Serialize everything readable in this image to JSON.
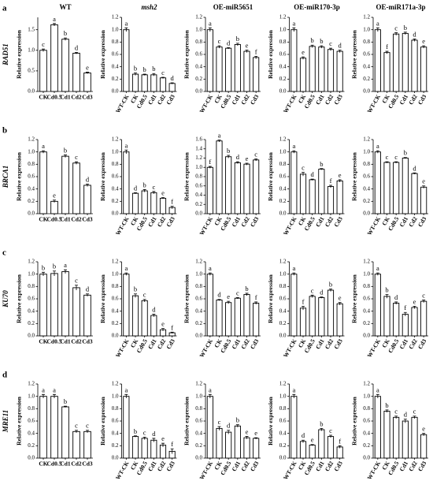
{
  "chart_data": [
    {
      "type": "bar",
      "panel": "a",
      "gene": "RAD51",
      "title": "WT",
      "ylabel": "Relative expression",
      "categories": [
        "CK",
        "Cd0.5",
        "Cd1",
        "Cd2",
        "Cd3"
      ],
      "values": [
        1.0,
        1.62,
        1.27,
        0.93,
        0.45
      ],
      "errors": [
        0.03,
        0.03,
        0.03,
        0.02,
        0.02
      ],
      "letters": [
        "c",
        "a",
        "b",
        "d",
        "e"
      ],
      "ylim": [
        0,
        1.8
      ],
      "yticks": [
        {
          "value": 0,
          "label": "0.0"
        },
        0.5,
        {
          "value": 1,
          "label": "1.0"
        },
        1.5
      ]
    },
    {
      "type": "bar",
      "title": "msh2",
      "ylabel": "Relative expression",
      "categories": [
        "WT-CK",
        "CK",
        "Cd0.5",
        "Cd1",
        "Cd2",
        "Cd3"
      ],
      "values": [
        1.0,
        0.28,
        0.27,
        0.27,
        0.22,
        0.13
      ],
      "errors": [
        0.03,
        0.02,
        0.01,
        0.02,
        0.01,
        0.01
      ],
      "letters": [
        "a",
        "b",
        "b",
        "b",
        "c",
        "d"
      ],
      "ylim": [
        0,
        1.2
      ],
      "yticks": [
        {
          "value": 0,
          "label": "0.0"
        },
        0.2,
        0.4,
        0.6,
        0.8,
        {
          "value": 1,
          "label": "1.0"
        },
        1.2
      ]
    },
    {
      "type": "bar",
      "title": "OE-miR5651",
      "ylabel": "Relative expression",
      "categories": [
        "WT-CK",
        "CK",
        "Cd0.5",
        "Cd1",
        "Cd2",
        "Cd3"
      ],
      "values": [
        1.0,
        0.72,
        0.7,
        0.76,
        0.65,
        0.55
      ],
      "errors": [
        0.03,
        0.02,
        0.01,
        0.02,
        0.02,
        0.02
      ],
      "letters": [
        "a",
        "c",
        "d",
        "b",
        "e",
        "f"
      ],
      "ylim": [
        0,
        1.2
      ],
      "yticks": [
        {
          "value": 0,
          "label": "0.0"
        },
        0.2,
        0.4,
        0.6,
        0.8,
        {
          "value": 1,
          "label": "1.0"
        },
        1.2
      ]
    },
    {
      "type": "bar",
      "title": "OE-miR170-3p",
      "ylabel": "Relative expression",
      "categories": [
        "WT-CK",
        "CK",
        "Cd0.5",
        "Cd1",
        "Cd2",
        "Cd3"
      ],
      "values": [
        1.0,
        0.54,
        0.73,
        0.72,
        0.68,
        0.65
      ],
      "errors": [
        0.03,
        0.02,
        0.02,
        0.02,
        0.02,
        0.02
      ],
      "letters": [
        "a",
        "e",
        "b",
        "b",
        "c",
        "d"
      ],
      "ylim": [
        0,
        1.2
      ],
      "yticks": [
        {
          "value": 0,
          "label": "0.0"
        },
        0.2,
        0.4,
        0.6,
        0.8,
        {
          "value": 1,
          "label": "1.0"
        },
        1.2
      ]
    },
    {
      "type": "bar",
      "title": "OE-miR171a-3p",
      "ylabel": "Relative expression",
      "categories": [
        "WT-CK",
        "CK",
        "Cd0.5",
        "Cd1",
        "Cd2",
        "Cd3"
      ],
      "values": [
        1.0,
        0.63,
        0.93,
        0.94,
        0.83,
        0.72
      ],
      "errors": [
        0.03,
        0.02,
        0.02,
        0.02,
        0.02,
        0.02
      ],
      "letters": [
        "a",
        "f",
        "c",
        "b",
        "d",
        "e"
      ],
      "ylim": [
        0,
        1.2
      ],
      "yticks": [
        {
          "value": 0,
          "label": "0.0"
        },
        0.2,
        0.4,
        0.6,
        0.8,
        {
          "value": 1,
          "label": "1.0"
        },
        1.2
      ]
    },
    {
      "type": "bar",
      "panel": "b",
      "gene": "BRCA1",
      "ylabel": "Relative expression",
      "categories": [
        "CK",
        "Cd0.5",
        "Cd1",
        "Cd2",
        "Cd3"
      ],
      "values": [
        1.0,
        0.2,
        0.93,
        0.82,
        0.46
      ],
      "errors": [
        0.02,
        0.02,
        0.02,
        0.02,
        0.02
      ],
      "letters": [
        "a",
        "e",
        "b",
        "c",
        "d"
      ],
      "ylim": [
        0,
        1.2
      ],
      "yticks": [
        {
          "value": 0,
          "label": "0.0"
        },
        0.2,
        0.4,
        0.6,
        0.8,
        {
          "value": 1,
          "label": "1.0"
        },
        1.2
      ]
    },
    {
      "type": "bar",
      "ylabel": "Relative expression",
      "categories": [
        "WT-CK",
        "CK",
        "Cd0.5",
        "Cd1",
        "Cd2",
        "Cd3"
      ],
      "values": [
        1.0,
        0.33,
        0.37,
        0.34,
        0.25,
        0.1
      ],
      "errors": [
        0.03,
        0.01,
        0.02,
        0.02,
        0.01,
        0.02
      ],
      "letters": [
        "a",
        "d",
        "b",
        "c",
        "e",
        "f"
      ],
      "ylim": [
        0,
        1.2
      ],
      "yticks": [
        {
          "value": 0,
          "label": "0.0"
        },
        0.2,
        0.4,
        0.6,
        0.8,
        {
          "value": 1,
          "label": "1.0"
        },
        1.2
      ]
    },
    {
      "type": "bar",
      "ylabel": "Relative expression",
      "categories": [
        "WT-CK",
        "CK",
        "Cd0.5",
        "Cd1",
        "Cd2",
        "Cd3"
      ],
      "values": [
        1.0,
        1.57,
        1.23,
        1.1,
        1.07,
        1.16
      ],
      "errors": [
        0.02,
        0.02,
        0.03,
        0.02,
        0.02,
        0.02
      ],
      "letters": [
        "f",
        "a",
        "b",
        "d",
        "e",
        "c"
      ],
      "ylim": [
        0,
        1.6
      ],
      "yticks": [
        {
          "value": 0,
          "label": "0.0"
        },
        0.2,
        0.4,
        0.6,
        0.8,
        {
          "value": 1,
          "label": "1.0"
        },
        1.2,
        1.4,
        1.6
      ]
    },
    {
      "type": "bar",
      "ylabel": "Relative expression",
      "categories": [
        "WT-CK",
        "CK",
        "Cd0.5",
        "Cd1",
        "Cd2",
        "Cd3"
      ],
      "values": [
        1.0,
        0.64,
        0.55,
        0.72,
        0.44,
        0.53
      ],
      "errors": [
        0.02,
        0.03,
        0.01,
        0.01,
        0.02,
        0.02
      ],
      "letters": [
        "a",
        "c",
        "d",
        "b",
        "f",
        "e"
      ],
      "ylim": [
        0,
        1.2
      ],
      "yticks": [
        {
          "value": 0,
          "label": "0.0"
        },
        0.2,
        0.4,
        0.6,
        0.8,
        {
          "value": 1,
          "label": "1.0"
        },
        1.2
      ]
    },
    {
      "type": "bar",
      "ylabel": "Relative expression",
      "categories": [
        "WT-CK",
        "CK",
        "Cd0.5",
        "Cd1",
        "Cd2",
        "Cd3"
      ],
      "values": [
        1.0,
        0.83,
        0.83,
        0.9,
        0.65,
        0.43
      ],
      "errors": [
        0.02,
        0.01,
        0.01,
        0.01,
        0.01,
        0.02
      ],
      "letters": [
        "a",
        "c",
        "c",
        "b",
        "d",
        "e"
      ],
      "ylim": [
        0,
        1.2
      ],
      "yticks": [
        {
          "value": 0,
          "label": "0.0"
        },
        0.2,
        0.4,
        0.6,
        0.8,
        {
          "value": 1,
          "label": "1.0"
        },
        1.2
      ]
    },
    {
      "type": "bar",
      "panel": "c",
      "gene": "KU70",
      "ylabel": "Relative expression",
      "categories": [
        "CK",
        "Cd0.5",
        "Cd1",
        "Cd2",
        "Cd3"
      ],
      "values": [
        1.0,
        1.01,
        1.04,
        0.78,
        0.66
      ],
      "errors": [
        0.03,
        0.04,
        0.03,
        0.04,
        0.02
      ],
      "letters": [
        "b",
        "b",
        "a",
        "c",
        "d"
      ],
      "ylim": [
        0,
        1.2
      ],
      "yticks": [
        {
          "value": 0,
          "label": "0.0"
        },
        0.2,
        0.4,
        0.6,
        0.8,
        {
          "value": 1,
          "label": "1.0"
        },
        1.2
      ]
    },
    {
      "type": "bar",
      "ylabel": "Relative expression",
      "categories": [
        "WT-CK",
        "CK",
        "Cd0.5",
        "Cd1",
        "Cd2",
        "Cd3"
      ],
      "values": [
        1.0,
        0.65,
        0.57,
        0.33,
        0.1,
        0.05
      ],
      "errors": [
        0.02,
        0.03,
        0.02,
        0.02,
        0.02,
        0.01
      ],
      "letters": [
        "a",
        "b",
        "c",
        "d",
        "e",
        "f"
      ],
      "ylim": [
        0,
        1.2
      ],
      "yticks": [
        {
          "value": 0,
          "label": "0.0"
        },
        0.2,
        0.4,
        0.6,
        0.8,
        {
          "value": 1,
          "label": "1.0"
        },
        1.2
      ]
    },
    {
      "type": "bar",
      "ylabel": "Relative expression",
      "categories": [
        "WT-CK",
        "CK",
        "Cd0.5",
        "Cd1",
        "Cd2",
        "Cd3"
      ],
      "values": [
        1.0,
        0.58,
        0.54,
        0.61,
        0.67,
        0.53
      ],
      "errors": [
        0.02,
        0.01,
        0.02,
        0.01,
        0.02,
        0.02
      ],
      "letters": [
        "a",
        "d",
        "e",
        "c",
        "b",
        "f"
      ],
      "ylim": [
        0,
        1.2
      ],
      "yticks": [
        {
          "value": 0,
          "label": "0.0"
        },
        0.2,
        0.4,
        0.6,
        0.8,
        {
          "value": 1,
          "label": "1.0"
        },
        1.2
      ]
    },
    {
      "type": "bar",
      "ylabel": "Relative expression",
      "categories": [
        "WT-CK",
        "CK",
        "Cd0.5",
        "Cd1",
        "Cd2",
        "Cd3"
      ],
      "values": [
        1.0,
        0.45,
        0.64,
        0.62,
        0.74,
        0.52
      ],
      "errors": [
        0.02,
        0.03,
        0.02,
        0.01,
        0.02,
        0.02
      ],
      "letters": [
        "a",
        "f",
        "c",
        "d",
        "b",
        "e"
      ],
      "ylim": [
        0,
        1.2
      ],
      "yticks": [
        {
          "value": 0,
          "label": "0.0"
        },
        0.2,
        0.4,
        0.6,
        0.8,
        {
          "value": 1,
          "label": "1.0"
        },
        1.2
      ]
    },
    {
      "type": "bar",
      "ylabel": "Relative expression",
      "categories": [
        "WT-CK",
        "CK",
        "Cd0.5",
        "Cd1",
        "Cd2",
        "Cd3"
      ],
      "values": [
        1.0,
        0.64,
        0.53,
        0.35,
        0.46,
        0.56
      ],
      "errors": [
        0.02,
        0.03,
        0.02,
        0.03,
        0.02,
        0.02
      ],
      "letters": [
        "a",
        "b",
        "d",
        "f",
        "e",
        "c"
      ],
      "ylim": [
        0,
        1.2
      ],
      "yticks": [
        {
          "value": 0,
          "label": "0.0"
        },
        0.2,
        0.4,
        0.6,
        0.8,
        {
          "value": 1,
          "label": "1.0"
        },
        1.2
      ]
    },
    {
      "type": "bar",
      "panel": "d",
      "gene": "MRE11",
      "ylabel": "Relative expression",
      "categories": [
        "CK",
        "Cd0.5",
        "Cd1",
        "Cd2",
        "Cd3"
      ],
      "values": [
        1.0,
        1.0,
        0.83,
        0.43,
        0.43
      ],
      "errors": [
        0.03,
        0.03,
        0.01,
        0.02,
        0.02
      ],
      "letters": [
        "a",
        "a",
        "b",
        "c",
        "c"
      ],
      "ylim": [
        0,
        1.2
      ],
      "yticks": [
        {
          "value": 0,
          "label": "0.0"
        },
        0.2,
        0.4,
        0.6,
        0.8,
        {
          "value": 1,
          "label": "1.0"
        },
        1.2
      ]
    },
    {
      "type": "bar",
      "ylabel": "Relative expression",
      "categories": [
        "WT-CK",
        "CK",
        "Cd0.5",
        "Cd1",
        "Cd2",
        "Cd3"
      ],
      "values": [
        1.0,
        0.35,
        0.32,
        0.29,
        0.21,
        0.11
      ],
      "errors": [
        0.03,
        0.01,
        0.02,
        0.03,
        0.03,
        0.04
      ],
      "letters": [
        "a",
        "b",
        "c",
        "d",
        "e",
        "f"
      ],
      "ylim": [
        0,
        1.2
      ],
      "yticks": [
        {
          "value": 0,
          "label": "0.0"
        },
        0.2,
        0.4,
        0.6,
        0.8,
        {
          "value": 1,
          "label": "1.0"
        },
        1.2
      ]
    },
    {
      "type": "bar",
      "ylabel": "Relative expression",
      "categories": [
        "WT-CK",
        "CK",
        "Cd0.5",
        "Cd1",
        "Cd2",
        "Cd3"
      ],
      "values": [
        1.0,
        0.48,
        0.42,
        0.52,
        0.33,
        0.32
      ],
      "errors": [
        0.03,
        0.03,
        0.03,
        0.02,
        0.02,
        0.01
      ],
      "letters": [
        "a",
        "c",
        "d",
        "b",
        "e",
        "e"
      ],
      "ylim": [
        0,
        1.2
      ],
      "yticks": [
        {
          "value": 0,
          "label": "0.0"
        },
        0.2,
        0.4,
        0.6,
        0.8,
        {
          "value": 1,
          "label": "1.0"
        },
        1.2
      ]
    },
    {
      "type": "bar",
      "ylabel": "Relative expression",
      "categories": [
        "WT-CK",
        "CK",
        "Cd0.5",
        "Cd1",
        "Cd2",
        "Cd3"
      ],
      "values": [
        1.0,
        0.27,
        0.21,
        0.46,
        0.35,
        0.18
      ],
      "errors": [
        0.03,
        0.02,
        0.01,
        0.02,
        0.02,
        0.02
      ],
      "letters": [
        "a",
        "d",
        "e",
        "b",
        "c",
        "f"
      ],
      "ylim": [
        0,
        1.2
      ],
      "yticks": [
        {
          "value": 0,
          "label": "0.0"
        },
        0.2,
        0.4,
        0.6,
        0.8,
        {
          "value": 1,
          "label": "1.0"
        },
        1.2
      ]
    },
    {
      "type": "bar",
      "ylabel": "Relative expression",
      "categories": [
        "WT-CK",
        "CK",
        "Cd0.5",
        "Cd1",
        "Cd2",
        "Cd3"
      ],
      "values": [
        1.0,
        0.76,
        0.66,
        0.6,
        0.66,
        0.38
      ],
      "errors": [
        0.03,
        0.02,
        0.02,
        0.03,
        0.02,
        0.02
      ],
      "letters": [
        "a",
        "b",
        "c",
        "d",
        "c",
        "e"
      ],
      "ylim": [
        0,
        1.2
      ],
      "yticks": [
        {
          "value": 0,
          "label": "0.0"
        },
        0.2,
        0.4,
        0.6,
        0.8,
        {
          "value": 1,
          "label": "1.0"
        },
        1.2
      ]
    }
  ]
}
